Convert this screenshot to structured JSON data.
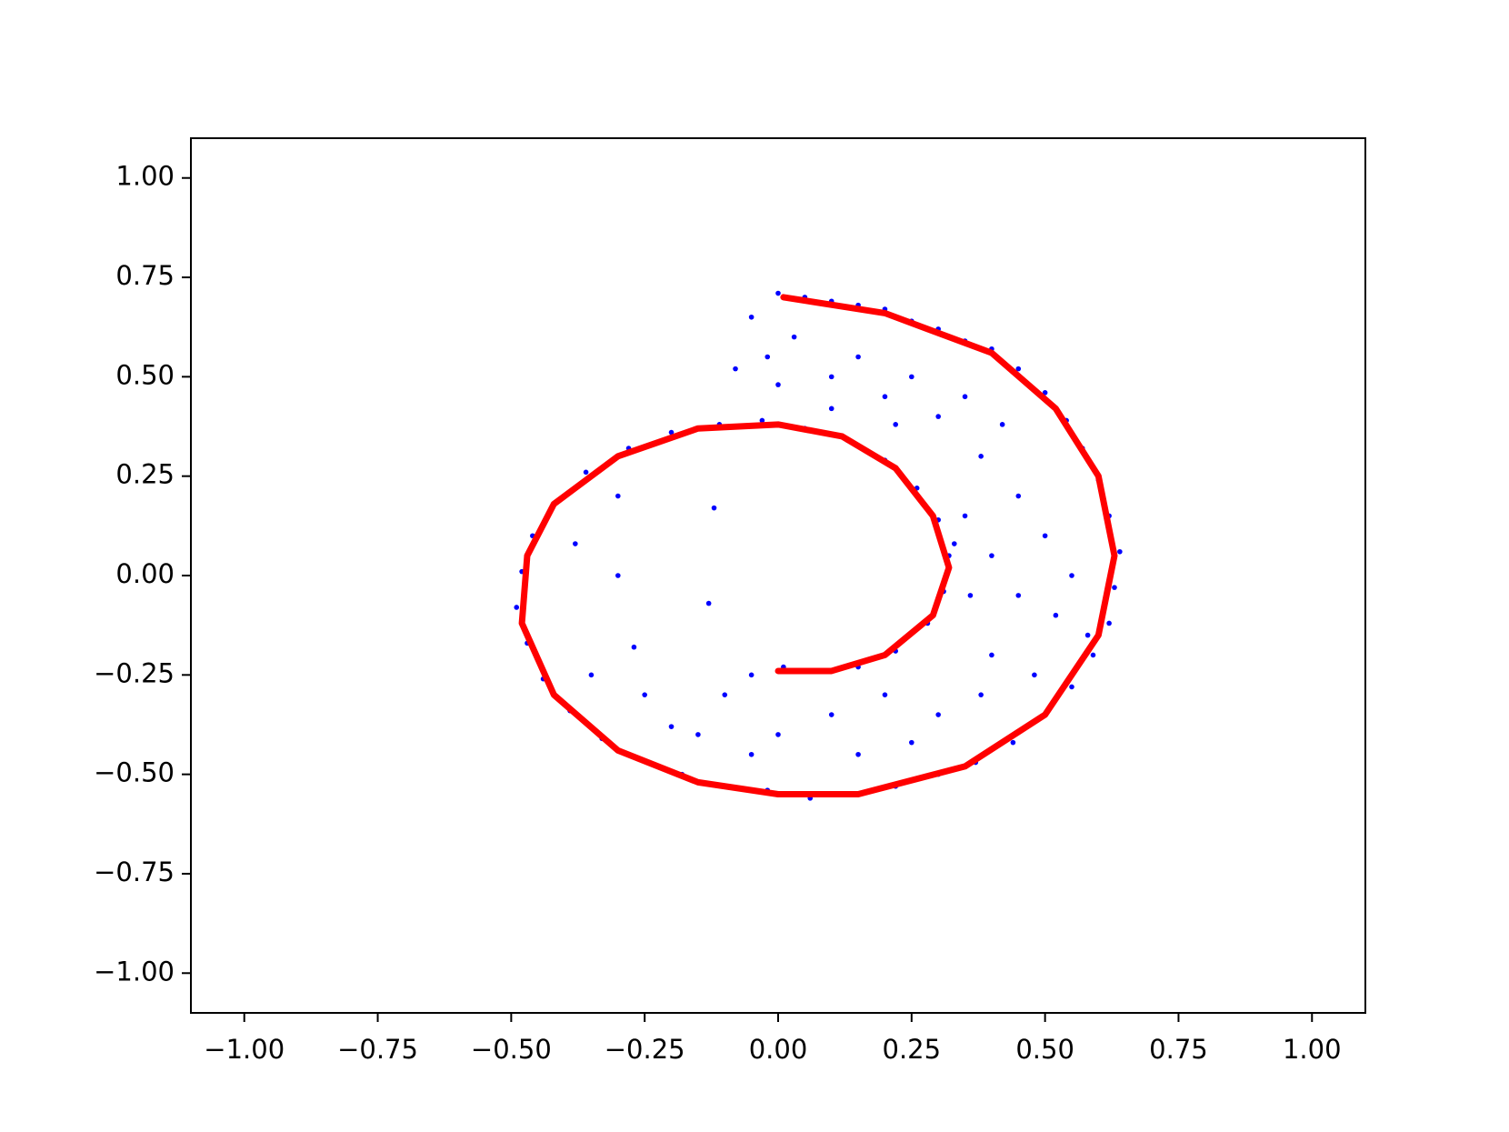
{
  "chart_data": {
    "type": "scatter",
    "xlim": [
      -1.1,
      1.1
    ],
    "ylim": [
      -1.1,
      1.1
    ],
    "xticks": [
      {
        "value": -1,
        "label": "−1.00"
      },
      {
        "value": -0.75,
        "label": "−0.75"
      },
      {
        "value": -0.5,
        "label": "−0.50"
      },
      {
        "value": -0.25,
        "label": "−0.25"
      },
      {
        "value": 0,
        "label": "0.00"
      },
      0.25,
      {
        "value": 0.5,
        "label": "0.50"
      },
      {
        "value": 0.75,
        "label": "0.75"
      },
      {
        "value": 1,
        "label": "1.00"
      }
    ],
    "yticks": [
      {
        "value": -1,
        "label": "−1.00"
      },
      {
        "value": -0.75,
        "label": "−0.75"
      },
      {
        "value": -0.5,
        "label": "−0.50"
      },
      {
        "value": -0.25,
        "label": "−0.25"
      },
      {
        "value": 0,
        "label": "0.00"
      },
      0.25,
      {
        "value": 0.5,
        "label": "0.50"
      },
      {
        "value": 0.75,
        "label": "0.75"
      },
      {
        "value": 1,
        "label": "1.00"
      }
    ],
    "series": [
      {
        "type": "scatter",
        "color": "#0000ff",
        "x": [
          0.0,
          0.05,
          0.1,
          0.15,
          0.2,
          0.25,
          0.3,
          0.35,
          0.4,
          0.45,
          0.5,
          0.54,
          0.57,
          0.6,
          0.62,
          0.64,
          0.63,
          0.62,
          0.59,
          0.55,
          0.5,
          0.44,
          0.37,
          0.3,
          0.22,
          0.14,
          0.06,
          -0.02,
          -0.1,
          -0.18,
          -0.26,
          -0.33,
          -0.39,
          -0.44,
          -0.47,
          -0.49,
          -0.48,
          -0.46,
          -0.42,
          -0.36,
          -0.28,
          -0.2,
          -0.11,
          -0.03,
          0.05,
          0.13,
          0.2,
          0.26,
          0.3,
          0.32,
          0.31,
          0.28,
          0.22,
          0.15,
          0.08,
          0.01,
          -0.05,
          -0.05,
          -0.02,
          0.03,
          -0.08,
          0.1,
          0.15,
          0.2,
          0.25,
          0.3,
          0.35,
          0.38,
          0.42,
          0.45,
          0.5,
          0.4,
          0.35,
          0.45,
          0.52,
          0.4,
          0.48,
          0.38,
          0.3,
          0.2,
          0.1,
          0.0,
          -0.1,
          -0.15,
          -0.2,
          -0.25,
          -0.05,
          0.15,
          0.25,
          0.33,
          0.36,
          0.55,
          0.58,
          -0.3,
          -0.12,
          -0.3,
          -0.27,
          -0.13,
          -0.35,
          -0.38,
          0.1,
          0.0,
          0.22
        ],
        "y": [
          0.71,
          0.7,
          0.69,
          0.68,
          0.67,
          0.64,
          0.62,
          0.59,
          0.57,
          0.52,
          0.46,
          0.39,
          0.32,
          0.24,
          0.15,
          0.06,
          -0.03,
          -0.12,
          -0.2,
          -0.28,
          -0.35,
          -0.42,
          -0.47,
          -0.5,
          -0.53,
          -0.55,
          -0.56,
          -0.54,
          -0.53,
          -0.5,
          -0.46,
          -0.41,
          -0.34,
          -0.26,
          -0.17,
          -0.08,
          0.01,
          0.1,
          0.18,
          0.26,
          0.32,
          0.36,
          0.38,
          0.39,
          0.37,
          0.34,
          0.29,
          0.22,
          0.14,
          0.05,
          -0.04,
          -0.12,
          -0.19,
          -0.23,
          -0.24,
          -0.23,
          -0.25,
          0.65,
          0.55,
          0.6,
          0.52,
          0.5,
          0.55,
          0.45,
          0.5,
          0.4,
          0.45,
          0.3,
          0.38,
          0.2,
          0.1,
          0.05,
          0.15,
          -0.05,
          -0.1,
          -0.2,
          -0.25,
          -0.3,
          -0.35,
          -0.3,
          -0.35,
          -0.4,
          -0.3,
          -0.4,
          -0.38,
          -0.3,
          -0.45,
          -0.45,
          -0.42,
          0.08,
          -0.05,
          0.0,
          -0.15,
          0.2,
          0.17,
          0.0,
          -0.18,
          -0.07,
          -0.25,
          0.08,
          0.42,
          0.48,
          0.38
        ]
      },
      {
        "type": "line",
        "color": "#ff0000",
        "x": [
          0.01,
          0.2,
          0.4,
          0.52,
          0.6,
          0.63,
          0.6,
          0.5,
          0.35,
          0.15,
          0.0,
          -0.15,
          -0.3,
          -0.42,
          -0.48,
          -0.47,
          -0.42,
          -0.3,
          -0.15,
          0.0,
          0.12,
          0.22,
          0.29,
          0.32,
          0.29,
          0.2,
          0.1,
          0.0
        ],
        "y": [
          0.7,
          0.66,
          0.56,
          0.42,
          0.25,
          0.05,
          -0.15,
          -0.35,
          -0.48,
          -0.55,
          -0.55,
          -0.52,
          -0.44,
          -0.3,
          -0.12,
          0.05,
          0.18,
          0.3,
          0.37,
          0.38,
          0.35,
          0.27,
          0.15,
          0.02,
          -0.1,
          -0.2,
          -0.24,
          -0.24
        ]
      }
    ]
  }
}
